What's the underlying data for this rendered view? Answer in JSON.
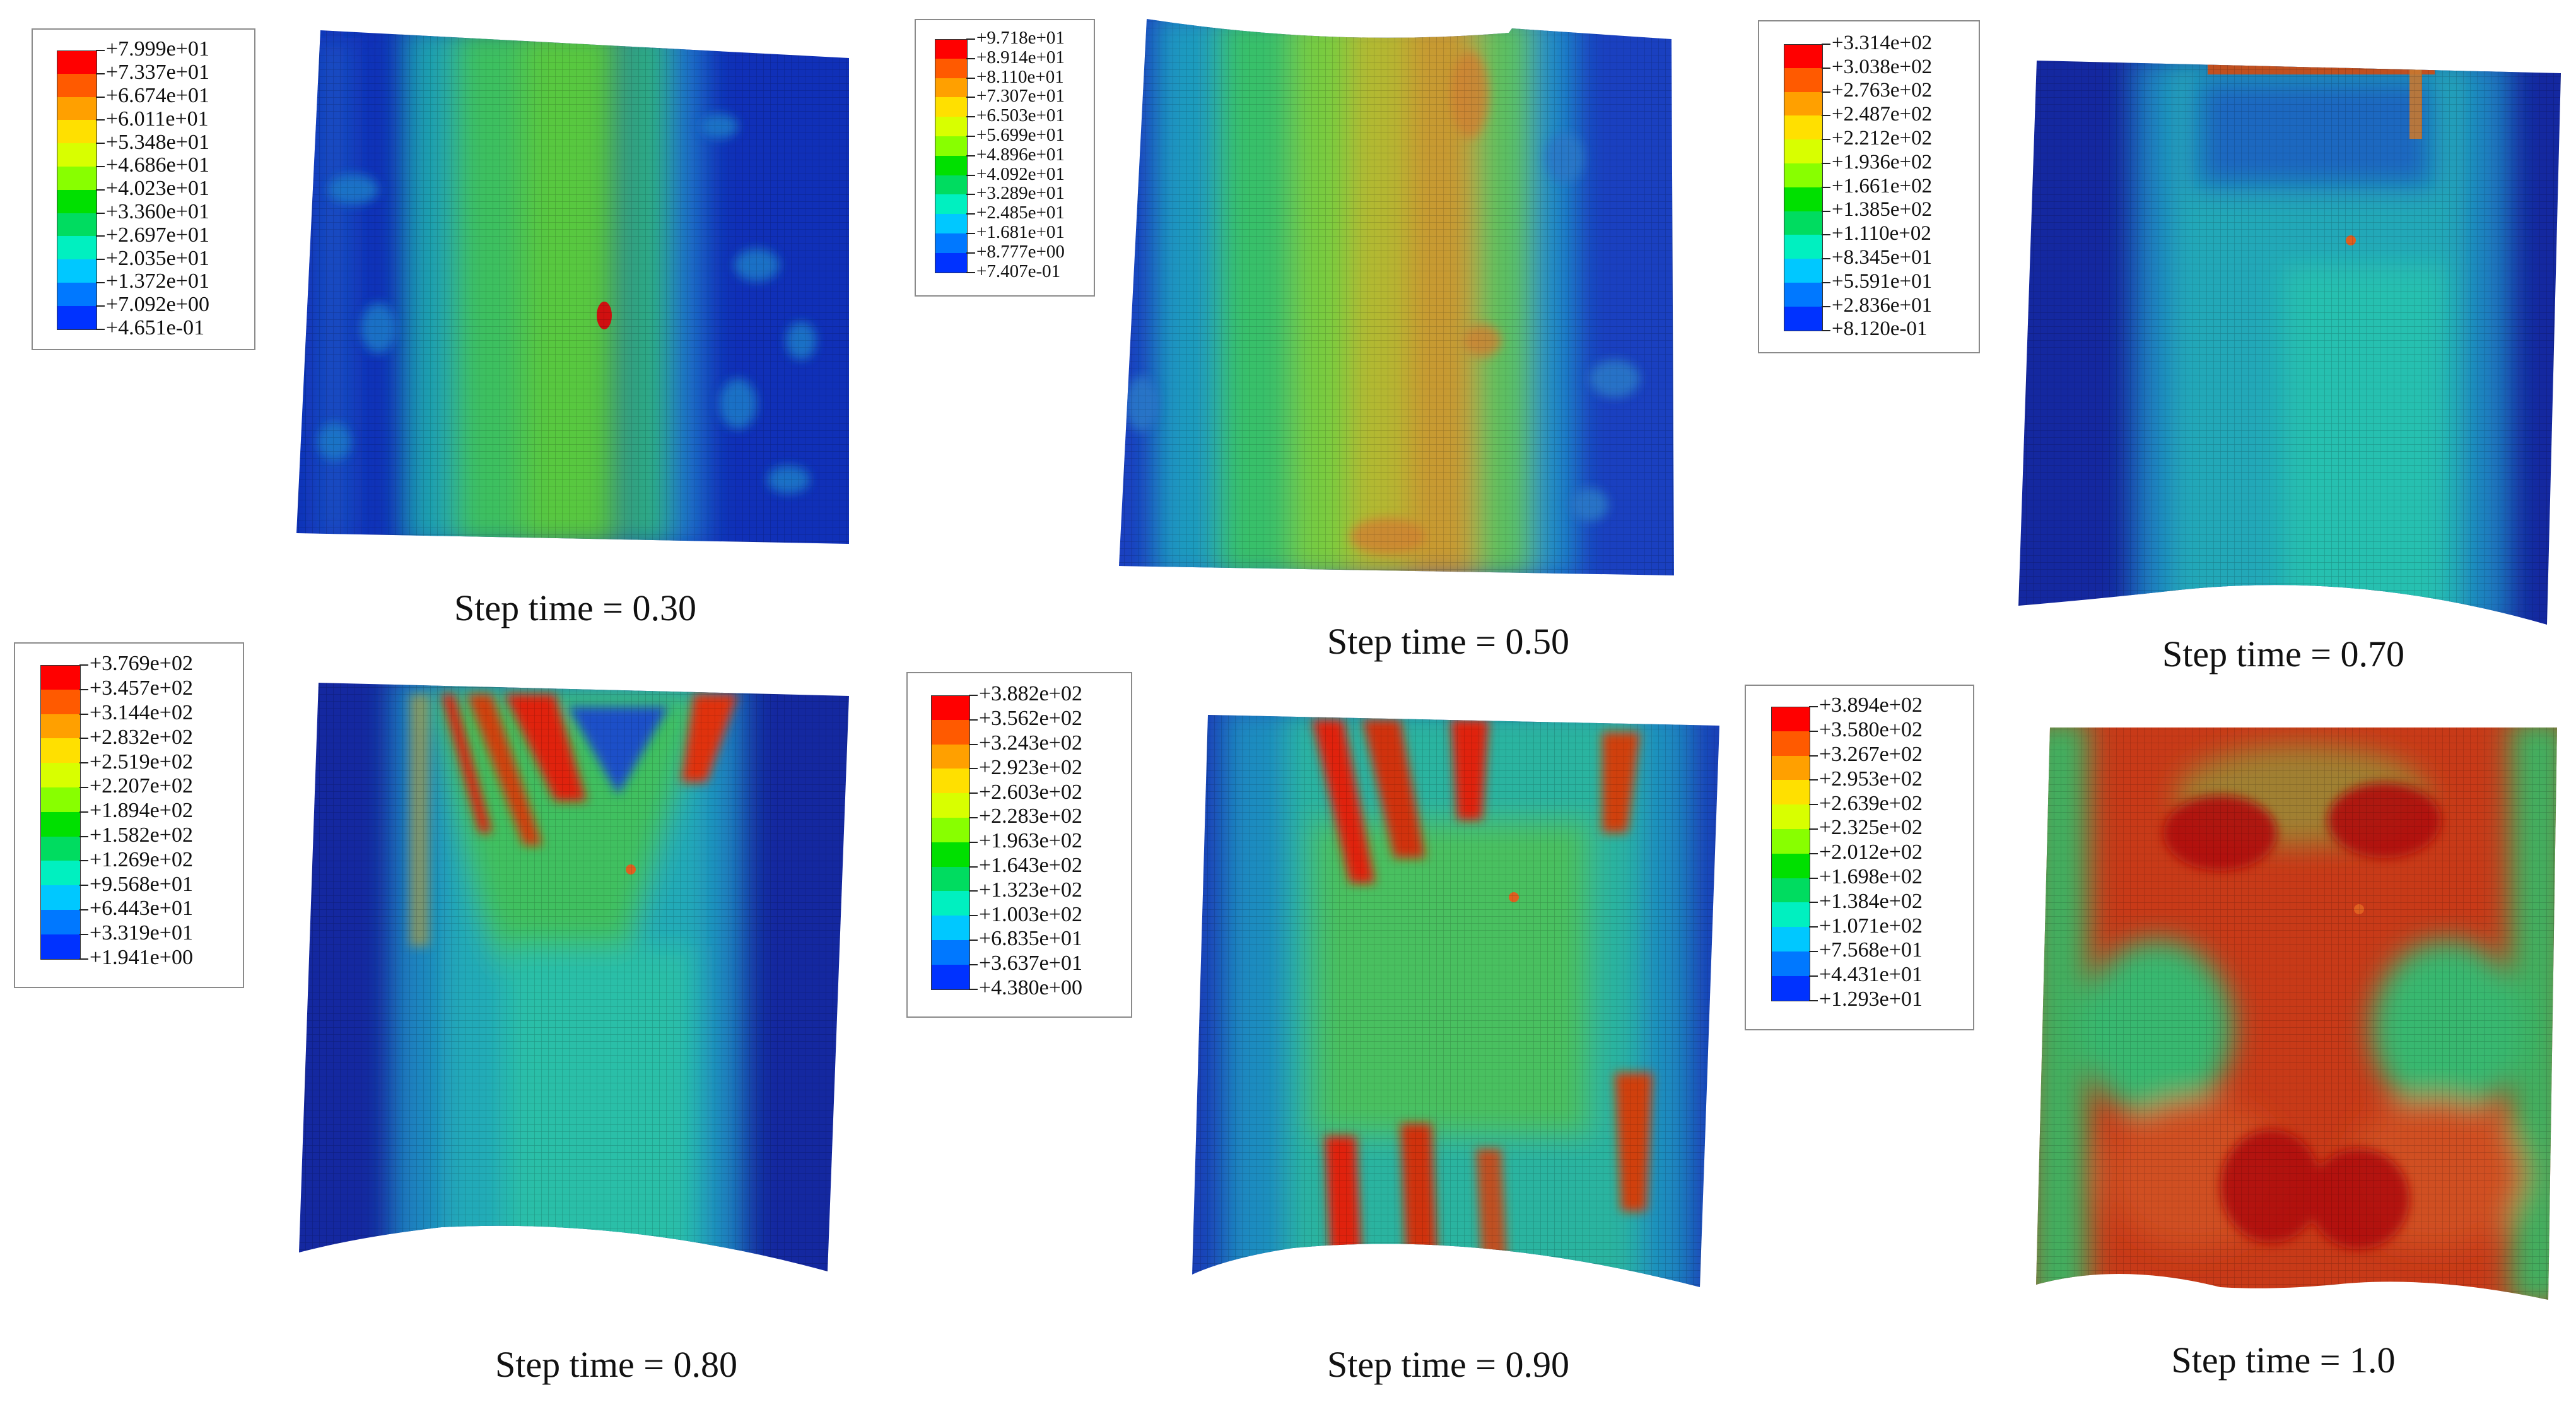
{
  "palette": [
    "#ff0000",
    "#ff5a00",
    "#ffa000",
    "#ffe000",
    "#d8ff00",
    "#88ff00",
    "#00e000",
    "#00dc60",
    "#00f0c0",
    "#00c8ff",
    "#0078ff",
    "#0032ff",
    "#0000e0"
  ],
  "panels": [
    {
      "caption": "Step time = 0.30",
      "legend": [
        "+7.999e+01",
        "+7.337e+01",
        "+6.674e+01",
        "+6.011e+01",
        "+5.348e+01",
        "+4.686e+01",
        "+4.023e+01",
        "+3.360e+01",
        "+2.697e+01",
        "+2.035e+01",
        "+1.372e+01",
        "+7.092e+00",
        "+4.651e-01"
      ],
      "field_description": "center vertical green band, blue sides, red hot spot at center"
    },
    {
      "caption": "Step time = 0.50",
      "legend": [
        "+9.718e+01",
        "+8.914e+01",
        "+8.110e+01",
        "+7.307e+01",
        "+6.503e+01",
        "+5.699e+01",
        "+4.896e+01",
        "+4.092e+01",
        "+3.289e+01",
        "+2.485e+01",
        "+1.681e+01",
        "+8.777e+00",
        "+7.407e-01"
      ],
      "field_description": "wider yellow-orange center band, green flanks, blue edges"
    },
    {
      "caption": "Step time = 0.70",
      "legend": [
        "+3.314e+02",
        "+3.038e+02",
        "+2.763e+02",
        "+2.487e+02",
        "+2.212e+02",
        "+1.936e+02",
        "+1.661e+02",
        "+1.385e+02",
        "+1.110e+02",
        "+8.345e+01",
        "+5.591e+01",
        "+2.836e+01",
        "+8.120e-01"
      ],
      "field_description": "mostly teal-cyan with dark blue edges, warm spots at top edge"
    },
    {
      "caption": "Step time = 0.80",
      "legend": [
        "+3.769e+02",
        "+3.457e+02",
        "+3.144e+02",
        "+2.832e+02",
        "+2.519e+02",
        "+2.207e+02",
        "+1.894e+02",
        "+1.582e+02",
        "+1.269e+02",
        "+9.568e+01",
        "+6.443e+01",
        "+3.319e+01",
        "+1.941e+00"
      ],
      "field_description": "red-orange wrinkles at top, green center, teal lower region"
    },
    {
      "caption": "Step time = 0.90",
      "legend": [
        "+3.882e+02",
        "+3.562e+02",
        "+3.243e+02",
        "+2.923e+02",
        "+2.603e+02",
        "+2.283e+02",
        "+1.963e+02",
        "+1.643e+02",
        "+1.323e+02",
        "+1.003e+02",
        "+6.835e+01",
        "+3.637e+01",
        "+4.380e+00"
      ],
      "field_description": "wrinkles at top and bottom, green-teal middle"
    },
    {
      "caption": "Step time = 1.0",
      "legend": [
        "+3.894e+02",
        "+3.580e+02",
        "+3.267e+02",
        "+2.953e+02",
        "+2.639e+02",
        "+2.325e+02",
        "+2.012e+02",
        "+1.698e+02",
        "+1.384e+02",
        "+1.071e+02",
        "+7.568e+01",
        "+4.431e+01",
        "+1.293e+01"
      ],
      "field_description": "mostly red-orange with green X-shaped patches"
    }
  ]
}
